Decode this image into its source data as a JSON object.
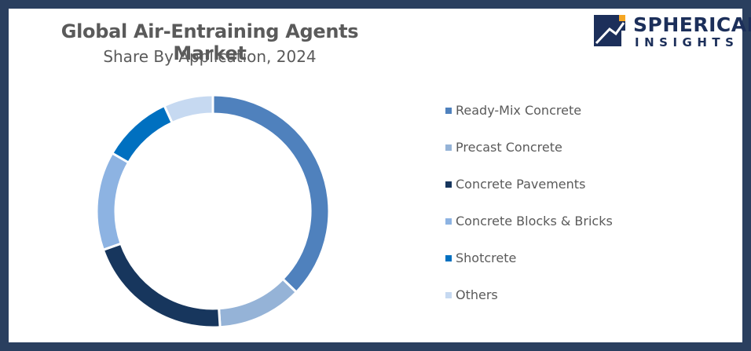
{
  "header": {
    "title": "Global Air-Entraining Agents Market",
    "subtitle": "Share By Application, 2024"
  },
  "logo": {
    "line1": "SPHERICAL",
    "line2": "INSIGHTS",
    "colors": {
      "navy": "#1c2f5a",
      "accent": "#f5a623"
    }
  },
  "chart_data": {
    "type": "pie",
    "donut": true,
    "categories": [
      "Ready-Mix Concrete",
      "Precast Concrete",
      "Concrete Pavements",
      "Concrete Blocks & Bricks",
      "Shotcrete",
      "Others"
    ],
    "values": [
      38,
      12,
      21,
      14,
      10,
      7
    ],
    "unit": "%",
    "colors": [
      "#4f81bd",
      "#95b3d7",
      "#17365d",
      "#8db3e2",
      "#0070c0",
      "#c6d9f1"
    ],
    "legend_position": "right"
  }
}
